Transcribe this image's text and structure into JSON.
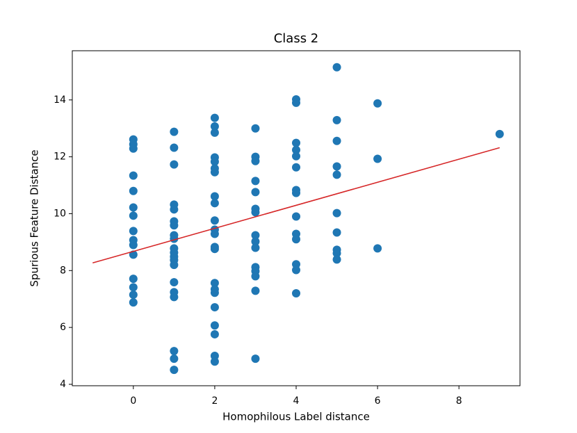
{
  "chart_data": {
    "type": "scatter",
    "title": "Class 2",
    "x_label": "Homophilous Label distance",
    "y_label": "Spurious Feature Distance",
    "xlim": [
      -1.5,
      9.5
    ],
    "ylim": [
      3.95,
      15.73
    ],
    "xticks": [
      0,
      2,
      4,
      6,
      8
    ],
    "yticks": [
      4,
      6,
      8,
      10,
      12,
      14
    ],
    "points": {
      "color": "#1f77b4",
      "x": [
        0,
        0,
        0,
        0,
        0,
        0,
        0,
        0,
        0,
        0,
        0,
        0,
        0,
        0,
        0,
        1,
        1,
        1,
        1,
        1,
        1,
        1,
        1,
        1,
        1,
        1,
        1,
        1,
        1,
        1,
        1,
        1,
        1,
        1,
        1,
        2,
        2,
        2,
        2,
        2,
        2,
        2,
        2,
        2,
        2,
        2,
        2,
        2,
        2,
        2,
        2,
        2,
        2,
        2,
        2,
        2,
        2,
        3,
        3,
        3,
        3,
        3,
        3,
        3,
        3,
        3,
        3,
        3,
        3,
        3,
        3,
        3,
        4,
        4,
        4,
        4,
        4,
        4,
        4,
        4,
        4,
        4,
        4,
        4,
        4,
        4,
        5,
        5,
        5,
        5,
        5,
        5,
        5,
        5,
        5,
        5,
        6,
        6,
        6,
        9
      ],
      "y": [
        12.61,
        12.44,
        12.29,
        11.34,
        10.8,
        10.22,
        9.93,
        9.39,
        9.07,
        8.9,
        8.56,
        7.71,
        7.41,
        7.15,
        6.88,
        12.88,
        12.32,
        11.73,
        10.32,
        10.15,
        9.73,
        9.59,
        9.24,
        9.12,
        8.78,
        8.63,
        8.49,
        8.37,
        8.2,
        7.59,
        7.24,
        7.07,
        5.17,
        4.9,
        4.51,
        13.37,
        13.07,
        12.85,
        11.98,
        11.83,
        11.59,
        11.46,
        10.61,
        10.37,
        9.76,
        9.44,
        9.29,
        8.83,
        8.76,
        7.56,
        7.34,
        7.22,
        6.71,
        6.07,
        5.76,
        5.0,
        4.8,
        13.0,
        12.0,
        11.85,
        11.15,
        10.76,
        10.17,
        10.05,
        9.24,
        9.02,
        8.8,
        8.12,
        7.98,
        7.8,
        7.29,
        4.9,
        14.02,
        13.9,
        12.49,
        12.24,
        12.02,
        11.63,
        10.83,
        10.73,
        9.9,
        9.29,
        9.1,
        8.22,
        8.02,
        7.2,
        15.15,
        13.29,
        12.56,
        11.66,
        11.37,
        10.02,
        9.34,
        8.73,
        8.61,
        8.39,
        13.88,
        11.93,
        8.78,
        12.8
      ]
    },
    "fit_line": {
      "color": "#d62728",
      "x": [
        -1,
        9
      ],
      "y": [
        8.27,
        12.32
      ]
    }
  }
}
